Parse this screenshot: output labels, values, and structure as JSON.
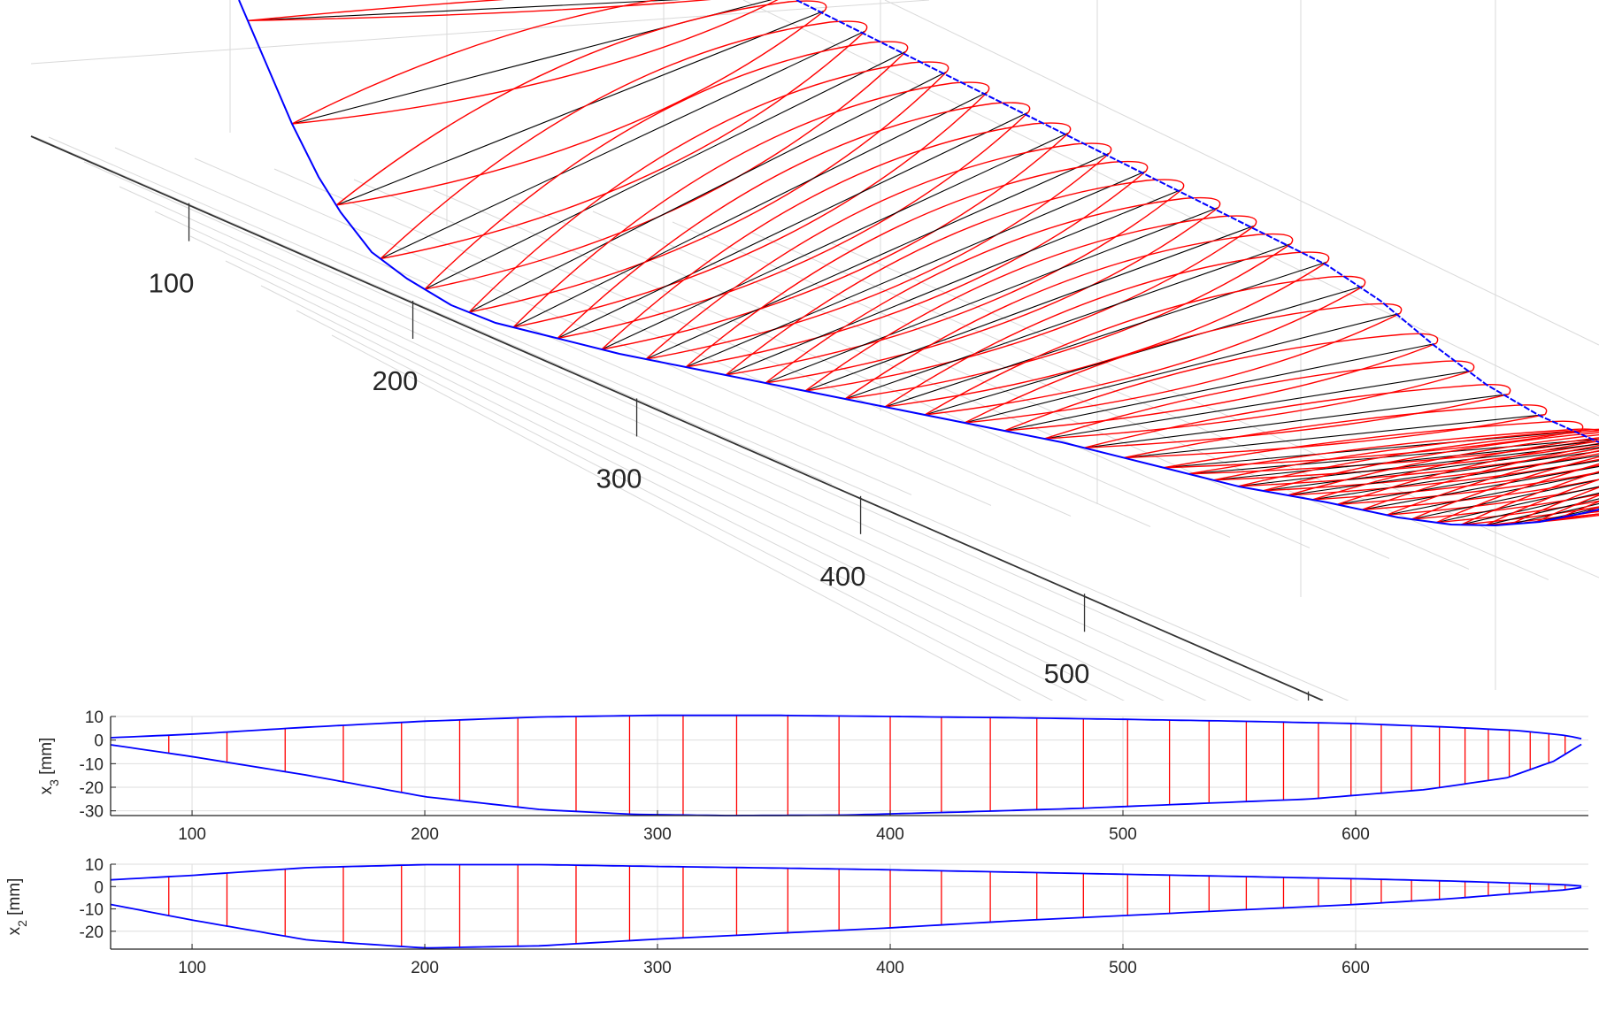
{
  "chart_data": [
    {
      "panel": "3d",
      "type": "line",
      "x_ticks": [
        100,
        200,
        300,
        400,
        500
      ],
      "x_range": [
        65,
        700
      ],
      "series_colors": {
        "outline": "#0000ff",
        "section": "#ff0000",
        "chord": "#000000",
        "grid": "#d9d9d9"
      }
    },
    {
      "panel": "side",
      "type": "line",
      "ylabel_base": "x",
      "ylabel_sub": "3",
      "ylabel_unit": " [mm]",
      "xlim": [
        65,
        700
      ],
      "ylim": [
        -32,
        10
      ],
      "x_ticks": [
        100,
        200,
        300,
        400,
        500,
        600
      ],
      "y_ticks": [
        10,
        0,
        -10,
        -20,
        -30
      ],
      "grid": true,
      "sections_x": [
        90,
        115,
        140,
        165,
        190,
        215,
        240,
        265,
        288,
        311,
        334,
        356,
        378,
        400,
        422,
        443,
        463,
        483,
        502,
        520,
        537,
        553,
        569,
        584,
        598,
        611,
        624,
        636,
        647,
        657,
        666,
        675,
        683,
        690
      ],
      "upper": {
        "x": [
          65,
          100,
          150,
          200,
          250,
          300,
          350,
          400,
          450,
          500,
          550,
          600,
          640,
          670,
          690,
          700
        ],
        "y": [
          1,
          2.5,
          5.5,
          8,
          9.8,
          10.5,
          10.5,
          10,
          9.5,
          8.8,
          8,
          7,
          5.5,
          4,
          2,
          0
        ]
      },
      "lower": {
        "x": [
          65,
          100,
          150,
          200,
          250,
          290,
          330,
          380,
          430,
          480,
          530,
          580,
          630,
          665,
          685,
          700
        ],
        "y": [
          -2,
          -7,
          -15,
          -24,
          -29.5,
          -31.5,
          -32,
          -31.8,
          -30.5,
          -29,
          -27,
          -25,
          -21,
          -16,
          -9,
          0
        ]
      }
    },
    {
      "panel": "top",
      "type": "line",
      "ylabel_base": "x",
      "ylabel_sub": "2",
      "ylabel_unit": " [mm]",
      "xlim": [
        65,
        700
      ],
      "ylim": [
        -28,
        10
      ],
      "x_ticks": [
        100,
        200,
        300,
        400,
        500,
        600
      ],
      "y_ticks": [
        10,
        0,
        -10,
        -20
      ],
      "grid": true,
      "sections_x": [
        90,
        115,
        140,
        165,
        190,
        215,
        240,
        265,
        288,
        311,
        334,
        356,
        378,
        400,
        422,
        443,
        463,
        483,
        502,
        520,
        537,
        553,
        569,
        584,
        598,
        611,
        624,
        636,
        647,
        657,
        666,
        675,
        683,
        690
      ],
      "upper": {
        "x": [
          65,
          100,
          150,
          200,
          250,
          300,
          350,
          400,
          450,
          500,
          550,
          600,
          640,
          670,
          690,
          700
        ],
        "y": [
          3,
          5,
          8.5,
          9.8,
          9.8,
          9,
          8.3,
          7.5,
          6.5,
          5.5,
          4.5,
          3.5,
          2.5,
          1.5,
          0.8,
          0
        ]
      },
      "lower": {
        "x": [
          65,
          100,
          150,
          200,
          250,
          300,
          350,
          400,
          450,
          500,
          550,
          600,
          640,
          670,
          690,
          700
        ],
        "y": [
          -8,
          -15,
          -24,
          -27.5,
          -26.5,
          -23.5,
          -21,
          -18.5,
          -15.5,
          -13,
          -10.5,
          -8,
          -5.5,
          -3,
          -1.5,
          0
        ]
      }
    }
  ]
}
